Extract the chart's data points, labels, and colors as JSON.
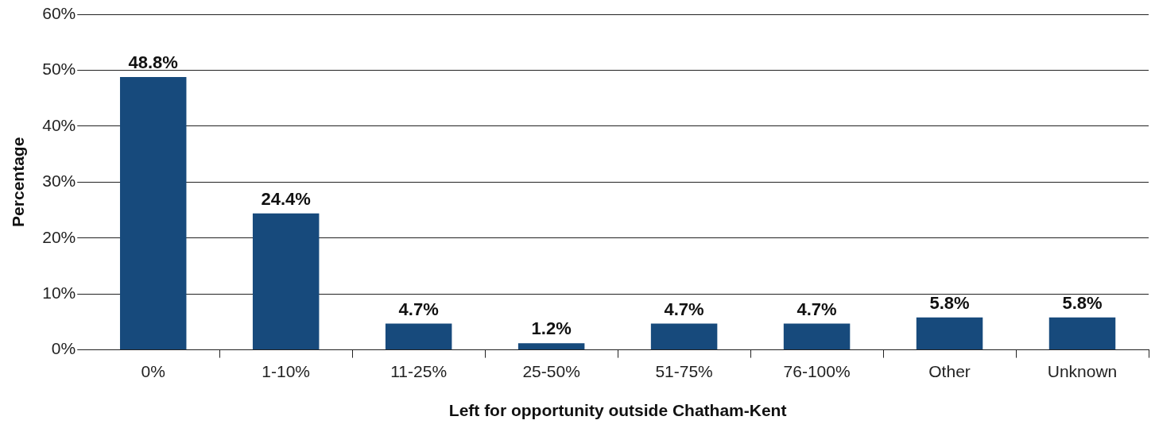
{
  "chart_data": {
    "type": "bar",
    "xlabel": "Left for opportunity outside Chatham-Kent",
    "ylabel": "Percentage",
    "categories": [
      "0%",
      "1-10%",
      "11-25%",
      "25-50%",
      "51-75%",
      "76-100%",
      "Other",
      "Unknown"
    ],
    "values": [
      48.8,
      24.4,
      4.7,
      1.2,
      4.7,
      4.7,
      5.8,
      5.8
    ],
    "value_labels": [
      "48.8%",
      "24.4%",
      "4.7%",
      "1.2%",
      "4.7%",
      "4.7%",
      "5.8%",
      "5.8%"
    ],
    "color": "#174a7c",
    "ylim": [
      0,
      60
    ],
    "yticks": [
      {
        "value": 0,
        "label": "0%"
      },
      {
        "value": 10,
        "label": "10%"
      },
      {
        "value": 20,
        "label": "20%"
      },
      {
        "value": 30,
        "label": "30%"
      },
      {
        "value": 40,
        "label": "40%"
      },
      {
        "value": 50,
        "label": "50%"
      },
      {
        "value": 60,
        "label": "60%"
      }
    ],
    "grid": "y",
    "legend": false
  }
}
